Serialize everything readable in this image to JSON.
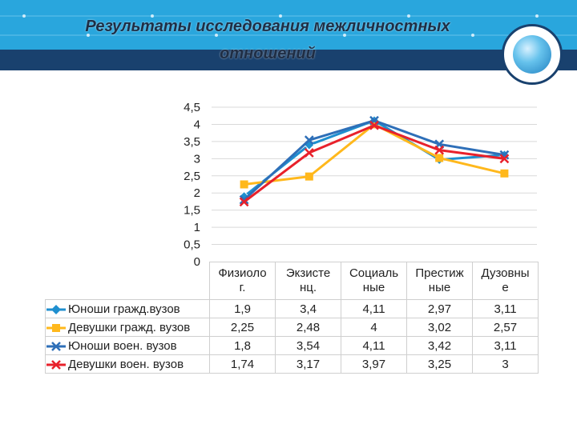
{
  "slide": {
    "title": "Результаты исследования межличностных отношений"
  },
  "chart_data": {
    "type": "line",
    "categories": [
      "Физиолог.",
      "Экзистенц.",
      "Социальные",
      "Престижные",
      "Дузовные"
    ],
    "category_lines": [
      [
        "Физиоло",
        "г."
      ],
      [
        "Экзисте",
        "нц."
      ],
      [
        "Социаль",
        "ные"
      ],
      [
        "Престиж",
        "ные"
      ],
      [
        "Дузовны",
        "е"
      ]
    ],
    "series": [
      {
        "name": "Юноши гражд.вузов",
        "values": [
          1.9,
          3.4,
          4.11,
          2.97,
          3.11
        ],
        "labels": [
          "1,9",
          "3,4",
          "4,11",
          "2,97",
          "3,11"
        ],
        "color": "#1f8fcf",
        "marker": "diamond"
      },
      {
        "name": "Девушки гражд. вузов",
        "values": [
          2.25,
          2.48,
          4,
          3.02,
          2.57
        ],
        "labels": [
          "2,25",
          "2,48",
          "4",
          "3,02",
          "2,57"
        ],
        "color": "#ffb81c",
        "marker": "square"
      },
      {
        "name": "Юноши воен. вузов",
        "values": [
          1.8,
          3.54,
          4.11,
          3.42,
          3.11
        ],
        "labels": [
          "1,8",
          "3,54",
          "4,11",
          "3,42",
          "3,11"
        ],
        "color": "#2e6fb8",
        "marker": "x"
      },
      {
        "name": "Девушки воен. вузов",
        "values": [
          1.74,
          3.17,
          3.97,
          3.25,
          3
        ],
        "labels": [
          "1,74",
          "3,17",
          "3,97",
          "3,25",
          "3"
        ],
        "color": "#e8212b",
        "marker": "x"
      }
    ],
    "ylim": [
      0,
      4.5
    ],
    "yticks": [
      "0",
      "0,5",
      "1",
      "1,5",
      "2",
      "2,5",
      "3",
      "3,5",
      "4",
      "4,5"
    ],
    "grid": true,
    "legend": "data-table"
  }
}
